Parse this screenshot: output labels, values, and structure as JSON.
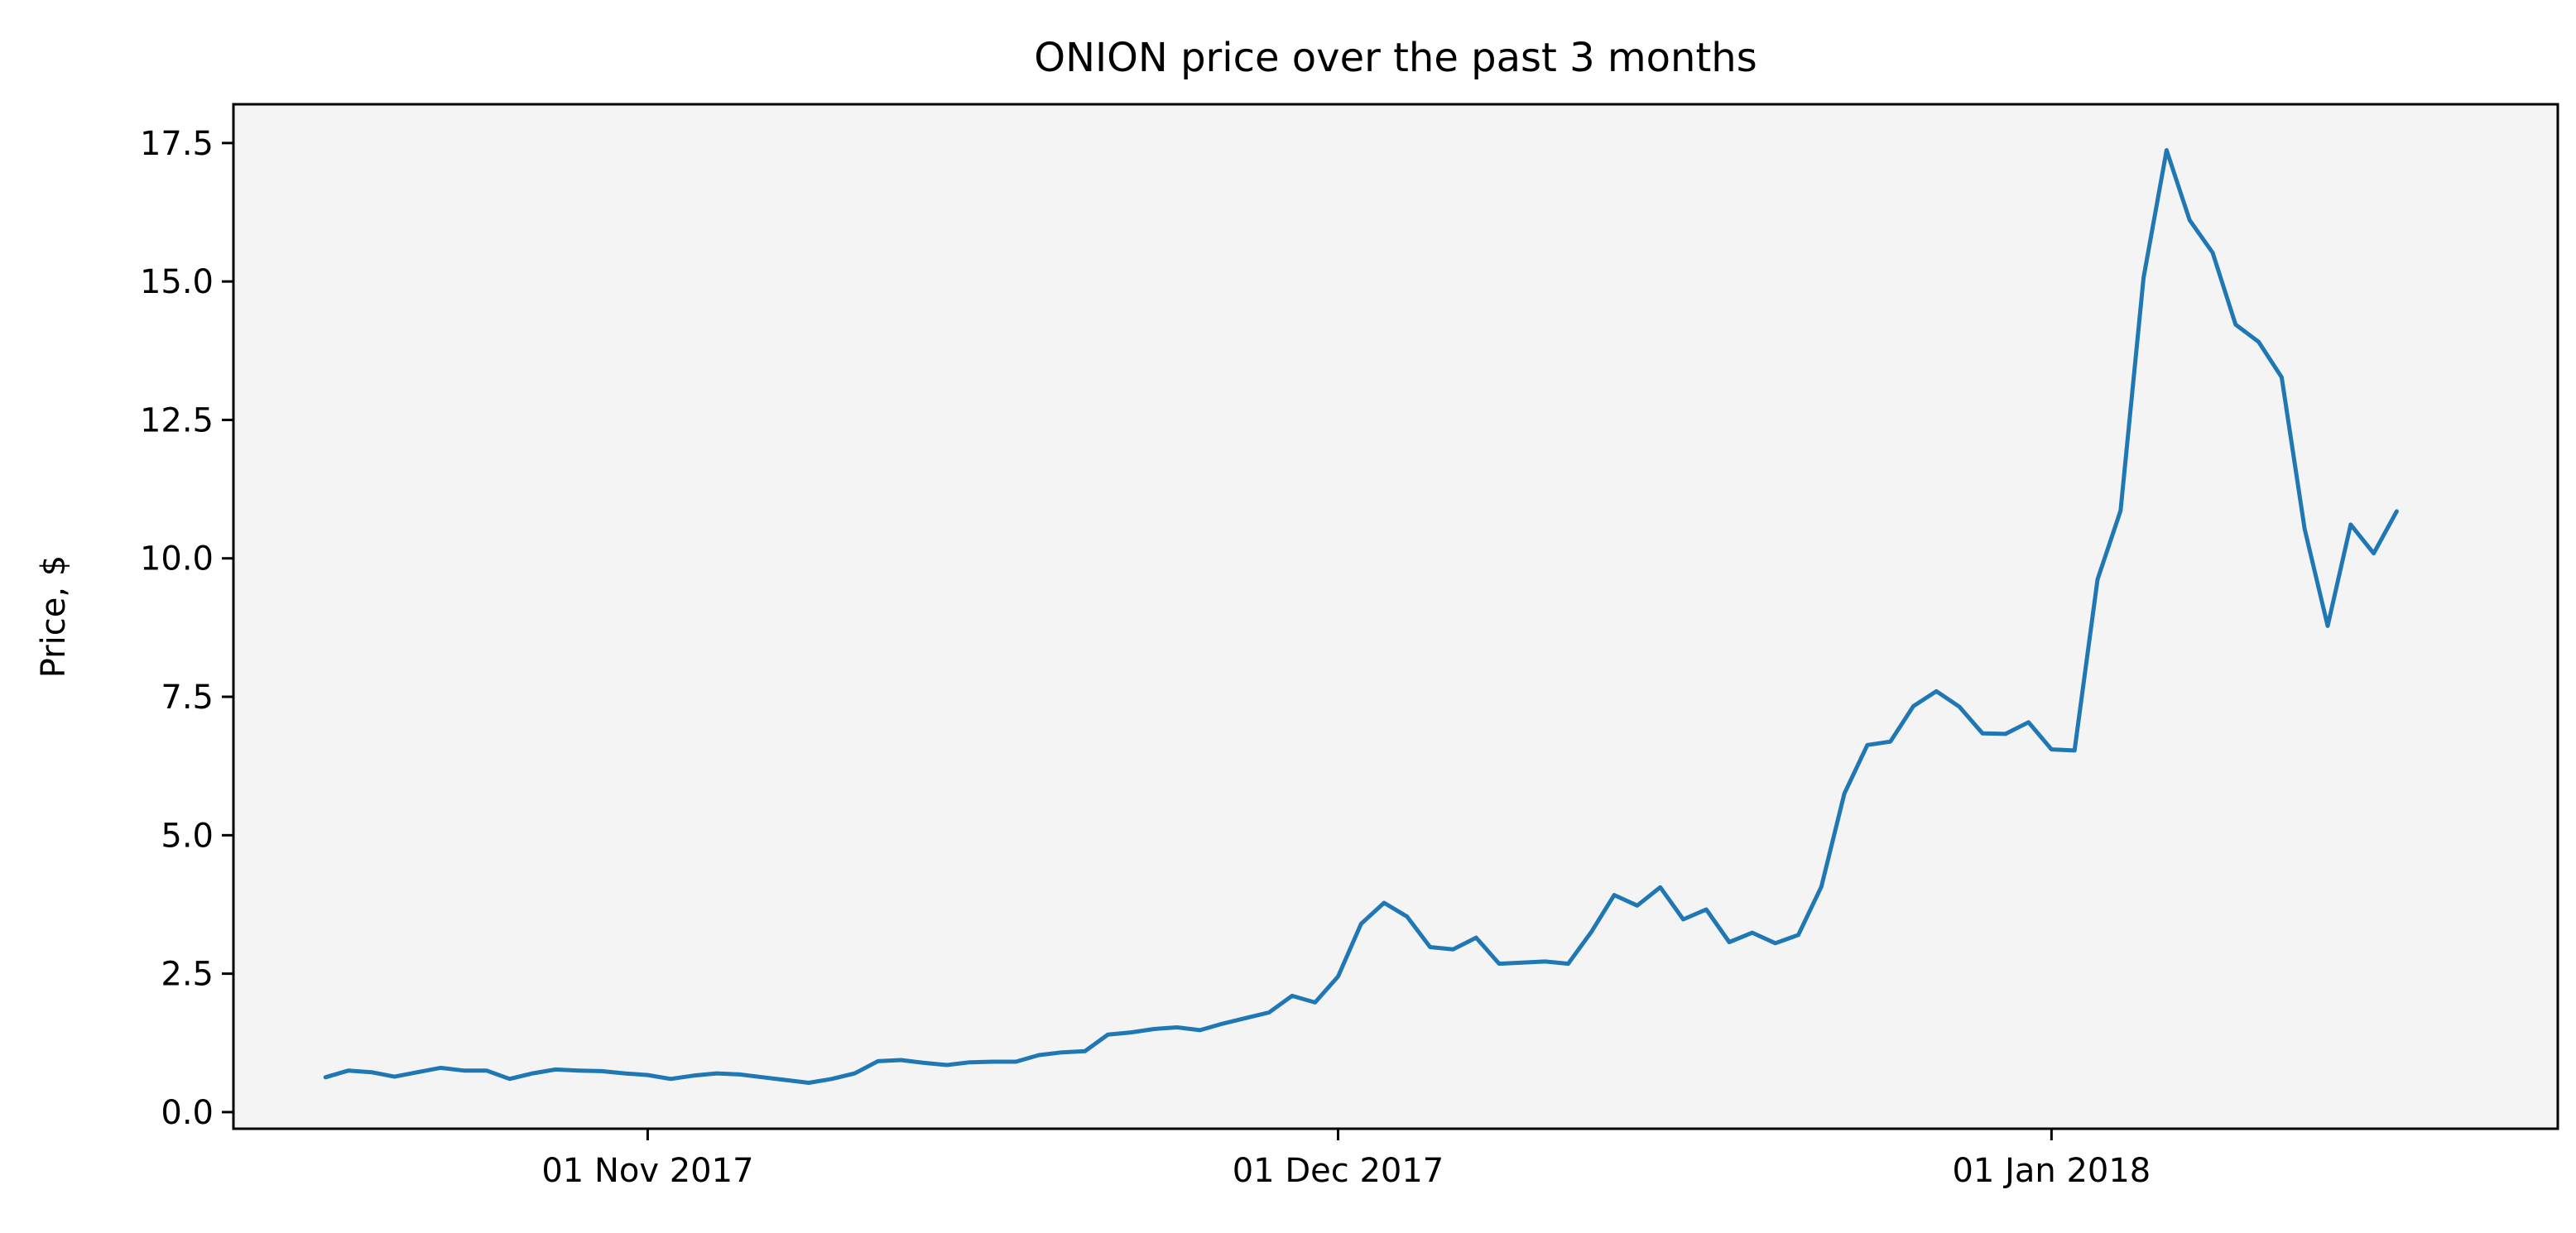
{
  "chart_data": {
    "type": "line",
    "title": "ONION price over the past 3 months",
    "xlabel": "",
    "ylabel": "Price, $",
    "grid": false,
    "legend": "none",
    "x_start": "2017-10-18",
    "x_step_days": 1,
    "xlim": [
      "2017-10-14",
      "2018-01-23"
    ],
    "ylim": [
      -0.3,
      18.2
    ],
    "y_ticks": [
      0.0,
      2.5,
      5.0,
      7.5,
      10.0,
      12.5,
      15.0,
      17.5
    ],
    "y_tick_labels": [
      "0.0",
      "2.5",
      "5.0",
      "7.5",
      "10.0",
      "12.5",
      "15.0",
      "17.5"
    ],
    "x_ticks": [
      "2017-11-01",
      "2017-12-01",
      "2018-01-01"
    ],
    "x_tick_labels": [
      "01 Nov 2017",
      "01 Dec 2017",
      "01 Jan 2018"
    ],
    "colors": {
      "line": "#1f77b4",
      "plot_bg": "#f4f4f4"
    },
    "series": [
      {
        "values": [
          0.63,
          0.75,
          0.72,
          0.64,
          0.72,
          0.8,
          0.75,
          0.75,
          0.6,
          0.7,
          0.77,
          0.75,
          0.74,
          0.7,
          0.67,
          0.6,
          0.66,
          0.7,
          0.68,
          0.63,
          0.58,
          0.53,
          0.6,
          0.7,
          0.92,
          0.94,
          0.89,
          0.85,
          0.9,
          0.91,
          0.91,
          1.03,
          1.08,
          1.1,
          1.4,
          1.44,
          1.5,
          1.53,
          1.48,
          1.6,
          1.7,
          1.8,
          2.1,
          1.98,
          2.45,
          3.4,
          3.78,
          3.53,
          2.98,
          2.94,
          3.15,
          2.68,
          2.7,
          2.72,
          2.68,
          3.25,
          3.92,
          3.73,
          4.06,
          3.48,
          3.66,
          3.07,
          3.24,
          3.05,
          3.2,
          4.07,
          5.75,
          6.63,
          6.69,
          7.33,
          7.6,
          7.32,
          6.84,
          6.83,
          7.04,
          6.55,
          6.53,
          9.62,
          10.86,
          15.07,
          17.37,
          16.11,
          15.52,
          14.22,
          13.91,
          13.27,
          10.53,
          8.78,
          10.61,
          10.09,
          10.85
        ]
      }
    ]
  }
}
